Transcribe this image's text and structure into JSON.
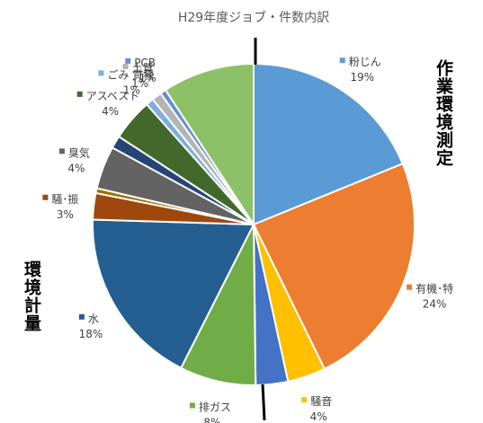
{
  "chart_data": {
    "type": "pie",
    "title": "H29年度ジョブ・件数内訳",
    "slices": [
      {
        "label": "粉じん",
        "pct_label": "19%",
        "value": 19.2,
        "color": "#5B9BD5"
      },
      {
        "label": "有機･特",
        "pct_label": "24%",
        "value": 24.4,
        "color": "#ED7D31"
      },
      {
        "label": "騒音",
        "pct_label": "4%",
        "value": 3.9,
        "color": "#FFC000"
      },
      {
        "label": "",
        "pct_label": "",
        "value": 3.3,
        "color": "#4472C4"
      },
      {
        "label": "排ガス",
        "pct_label": "8%",
        "value": 7.8,
        "color": "#70AD47"
      },
      {
        "label": "水",
        "pct_label": "18%",
        "value": 18.4,
        "color": "#255E91"
      },
      {
        "label": "騒･振",
        "pct_label": "3%",
        "value": 2.7,
        "color": "#9E480E"
      },
      {
        "label": "",
        "pct_label": "",
        "value": 0.5,
        "color": "#997300"
      },
      {
        "label": "臭気",
        "pct_label": "4%",
        "value": 4.4,
        "color": "#636363"
      },
      {
        "label": "",
        "pct_label": "",
        "value": 1.3,
        "color": "#264478"
      },
      {
        "label": "アスベスト",
        "pct_label": "4%",
        "value": 4.3,
        "color": "#43682B"
      },
      {
        "label": "ごみ 質種",
        "pct_label": "1%",
        "value": 0.8,
        "color": "#7CAFDD"
      },
      {
        "label": "土質",
        "pct_label": "1%",
        "value": 1.0,
        "color": "#B4B4B4"
      },
      {
        "label": "PCB",
        "pct_label": "1%",
        "value": 0.6,
        "color": "#698ED0"
      },
      {
        "label": "",
        "pct_label": "",
        "value": 9.4,
        "color": "#8CC168"
      }
    ],
    "group_labels": {
      "right": "作業環境測定",
      "left": "環境計量"
    },
    "legend": "none"
  }
}
